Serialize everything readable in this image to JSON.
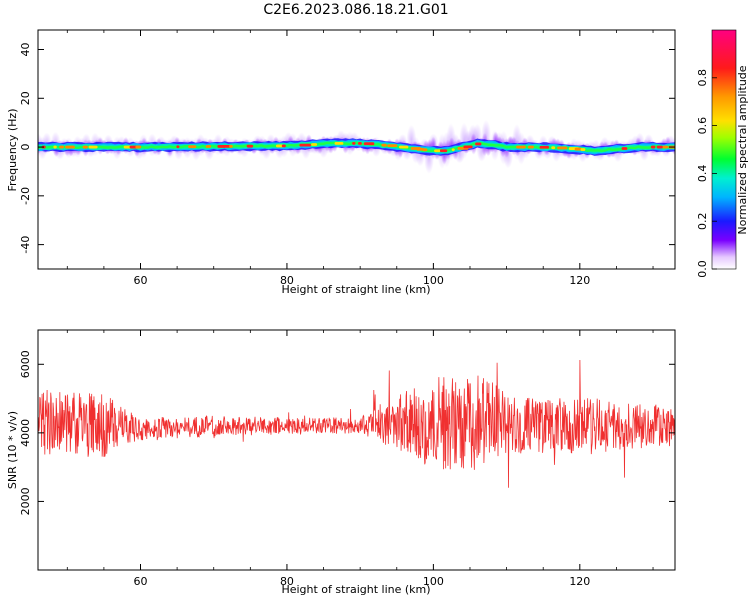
{
  "title": "C2E6.2023.086.18.21.G01",
  "chart_data": [
    {
      "type": "heatmap",
      "xlabel": "Height of straight line (km)",
      "ylabel": "Frequency (Hz)",
      "xlim": [
        46,
        133
      ],
      "ylim": [
        -50,
        48
      ],
      "x_ticks": [
        60,
        80,
        100,
        120
      ],
      "y_ticks": [
        -40,
        -20,
        0,
        20,
        40
      ],
      "ridge_center_x": [
        46,
        60,
        80,
        86,
        90,
        94,
        98,
        100,
        102,
        104,
        106,
        108,
        110,
        114,
        118,
        120,
        122,
        124,
        128,
        133
      ],
      "ridge_center_y": [
        0,
        0,
        0.5,
        1.5,
        1.5,
        0.5,
        -1,
        -1.5,
        -1.5,
        0,
        1.5,
        1,
        0,
        0,
        -0.5,
        -1,
        -1.5,
        -1,
        0,
        0
      ],
      "colorbar": {
        "label": "Normalized spectral amplitude",
        "range": [
          0,
          1
        ],
        "ticks": [
          "0.0",
          "0.2",
          "0.4",
          "0.6",
          "0.8"
        ]
      },
      "grid": false
    },
    {
      "type": "line",
      "xlabel": "Height of straight line (km)",
      "ylabel": "SNR (10 * v/v)",
      "xlim": [
        46,
        133
      ],
      "ylim": [
        0,
        7000
      ],
      "x_ticks": [
        60,
        80,
        100,
        120
      ],
      "y_ticks": [
        2000,
        4000,
        6000
      ],
      "envelope_x": [
        46,
        50,
        55,
        57,
        60,
        70,
        80,
        90,
        92,
        95,
        98,
        100,
        102,
        104,
        106,
        108,
        110,
        115,
        120,
        125,
        133
      ],
      "envelope_mean": [
        4300,
        4300,
        4200,
        4200,
        4100,
        4200,
        4200,
        4200,
        4300,
        4300,
        4250,
        4200,
        4300,
        4250,
        4300,
        4350,
        4200,
        4200,
        4200,
        4200,
        4200
      ],
      "envelope_amplitude": [
        1000,
        900,
        1000,
        600,
        350,
        300,
        250,
        250,
        500,
        800,
        1200,
        1400,
        1400,
        1300,
        1400,
        1200,
        900,
        800,
        900,
        700,
        600
      ],
      "series_color": "#f03030",
      "grid": false
    }
  ]
}
